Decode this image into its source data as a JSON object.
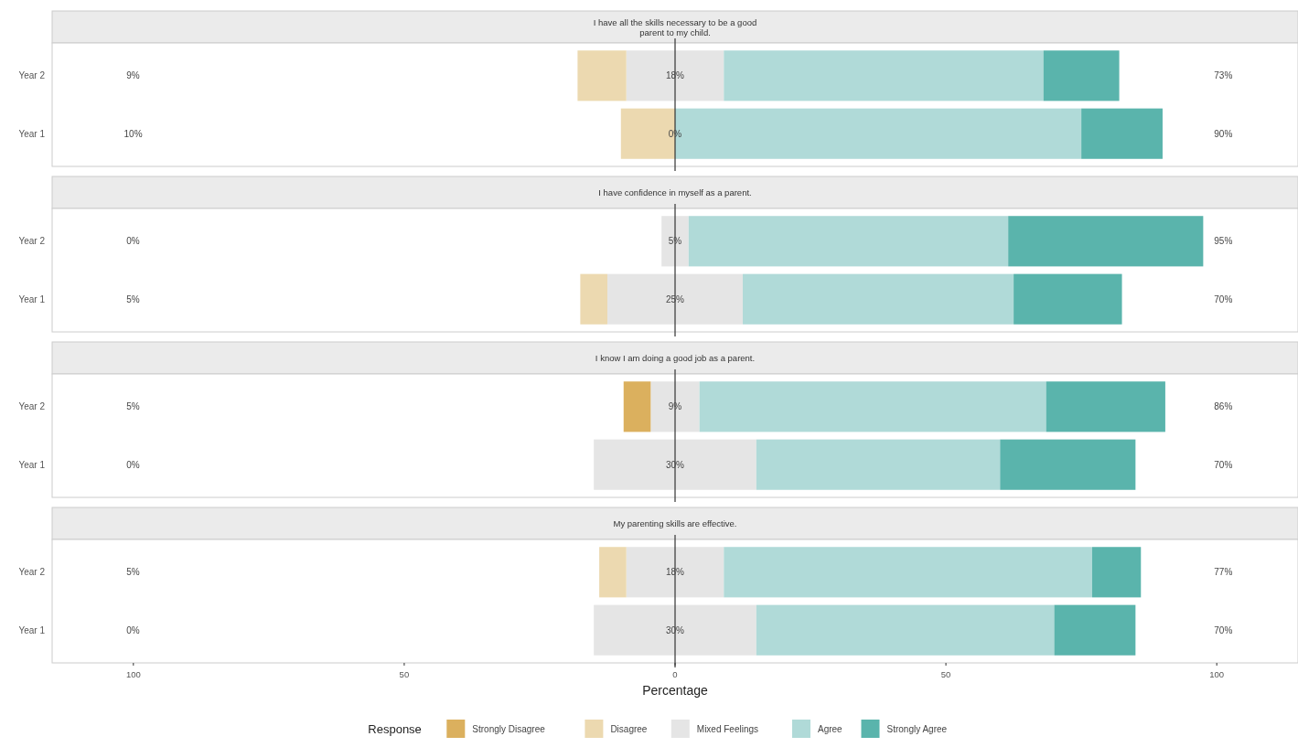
{
  "chart_data": [
    {
      "type": "bar",
      "orientation": "horizontal",
      "stacked": true,
      "title": "I have all the skills necessary to be a good parent to my child.",
      "categories": [
        "Year 2",
        "Year 1"
      ],
      "series": [
        {
          "color": "#e5e5e5",
          "values": [
            -9,
            0
          ]
        },
        {
          "color": "#ecd9b0",
          "values": [
            -9,
            -10
          ]
        },
        {
          "color": "#dbb05e",
          "values": [
            0,
            0
          ]
        },
        {
          "color": "#e5e5e5",
          "values": [
            9,
            0
          ]
        },
        {
          "color": "#b0dad8",
          "values": [
            59,
            75
          ]
        },
        {
          "color": "#5ab4ac",
          "values": [
            14,
            15
          ]
        }
      ],
      "xlim": [
        -115,
        115
      ],
      "tick_labels": "y",
      "legend": false,
      "ref_lines": [
        {
          "axis": "x",
          "value": 0,
          "color": "#333333"
        }
      ],
      "annotations": [
        "9%",
        "18%",
        "73%",
        "10%",
        "0%",
        "90%"
      ]
    },
    {
      "type": "bar",
      "orientation": "horizontal",
      "stacked": true,
      "title": "I have confidence in myself as a parent.",
      "categories": [
        "Year 2",
        "Year 1"
      ],
      "series": [
        {
          "color": "#e5e5e5",
          "values": [
            -2.5,
            -12.5
          ]
        },
        {
          "color": "#ecd9b0",
          "values": [
            0,
            -5
          ]
        },
        {
          "color": "#dbb05e",
          "values": [
            0,
            0
          ]
        },
        {
          "color": "#e5e5e5",
          "values": [
            2.5,
            12.5
          ]
        },
        {
          "color": "#b0dad8",
          "values": [
            59,
            50
          ]
        },
        {
          "color": "#5ab4ac",
          "values": [
            36,
            20
          ]
        }
      ],
      "xlim": [
        -115,
        115
      ],
      "tick_labels": "y",
      "legend": false,
      "ref_lines": [
        {
          "axis": "x",
          "value": 0,
          "color": "#333333"
        }
      ],
      "annotations": [
        "0%",
        "5%",
        "95%",
        "5%",
        "25%",
        "70%"
      ]
    },
    {
      "type": "bar",
      "orientation": "horizontal",
      "stacked": true,
      "title": "I know I am doing a good job as a parent.",
      "categories": [
        "Year 2",
        "Year 1"
      ],
      "series": [
        {
          "color": "#e5e5e5",
          "values": [
            -4.5,
            -15
          ]
        },
        {
          "color": "#ecd9b0",
          "values": [
            0,
            0
          ]
        },
        {
          "color": "#dbb05e",
          "values": [
            -5,
            0
          ]
        },
        {
          "color": "#e5e5e5",
          "values": [
            4.5,
            15
          ]
        },
        {
          "color": "#b0dad8",
          "values": [
            64,
            45
          ]
        },
        {
          "color": "#5ab4ac",
          "values": [
            22,
            25
          ]
        }
      ],
      "xlim": [
        -115,
        115
      ],
      "tick_labels": "y",
      "legend": false,
      "ref_lines": [
        {
          "axis": "x",
          "value": 0,
          "color": "#333333"
        }
      ],
      "annotations": [
        "5%",
        "9%",
        "86%",
        "0%",
        "30%",
        "70%"
      ]
    },
    {
      "type": "bar",
      "orientation": "horizontal",
      "stacked": true,
      "title": "My parenting skills are effective.",
      "categories": [
        "Year 2",
        "Year 1"
      ],
      "series": [
        {
          "color": "#e5e5e5",
          "values": [
            -9,
            -15
          ]
        },
        {
          "name": "Disagree",
          "color": "#ecd9b0",
          "values": [
            -5,
            0
          ]
        },
        {
          "name": "Strongly Disagree",
          "color": "#dbb05e",
          "values": [
            0,
            0
          ]
        },
        {
          "name": "Mixed Feelings",
          "color": "#e5e5e5",
          "values": [
            9,
            15
          ]
        },
        {
          "name": "Agree",
          "color": "#b0dad8",
          "values": [
            68,
            55
          ]
        },
        {
          "name": "Strongly Agree",
          "color": "#5ab4ac",
          "values": [
            9,
            15
          ]
        }
      ],
      "xlim": [
        -115,
        115
      ],
      "xticks": [
        {
          "value": -100,
          "label": "100"
        },
        {
          "value": -50,
          "label": "50"
        },
        0,
        50,
        100
      ],
      "xlabel": "Percentage",
      "legend": "bottom",
      "legend_title": "Response",
      "ref_lines": [
        {
          "axis": "x",
          "value": 0,
          "color": "#333333"
        }
      ],
      "annotations": [
        "5%",
        "18%",
        "77%",
        "0%",
        "30%",
        "70%"
      ]
    }
  ]
}
